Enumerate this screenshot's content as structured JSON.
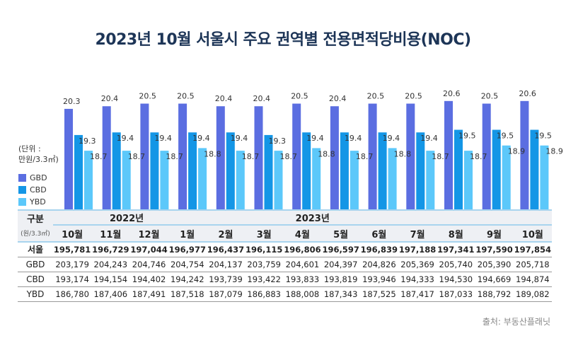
{
  "title": "2023년 10월 서울시 주요 권역별 전용면적당비용(NOC)",
  "unit_label_1": "(단위 :",
  "unit_label_2": "만원/3.3㎡)",
  "source": "출처: 부동산플래닛",
  "table": {
    "corner": "구분",
    "corner_unit": "(원/3.3㎡)",
    "years": [
      {
        "label": "2022년",
        "span": 3
      },
      {
        "label": "2023년",
        "span": 10
      }
    ],
    "months": [
      "10월",
      "11월",
      "12월",
      "1월",
      "2월",
      "3월",
      "4월",
      "5월",
      "6월",
      "7월",
      "8월",
      "9월",
      "10월"
    ],
    "rows": [
      {
        "label": "서울",
        "bold": true,
        "values": [
          "195,781",
          "196,729",
          "197,044",
          "196,977",
          "196,437",
          "196,115",
          "196,806",
          "196,597",
          "196,839",
          "197,188",
          "197,341",
          "197,590",
          "197,854"
        ]
      },
      {
        "label": "GBD",
        "values": [
          "203,179",
          "204,243",
          "204,746",
          "204,754",
          "204,137",
          "203,759",
          "204,601",
          "204,397",
          "204,826",
          "205,369",
          "205,740",
          "205,390",
          "205,718"
        ]
      },
      {
        "label": "CBD",
        "values": [
          "193,174",
          "194,154",
          "194,402",
          "194,242",
          "193,739",
          "193,422",
          "193,833",
          "193,819",
          "193,946",
          "194,333",
          "194,530",
          "194,669",
          "194,874"
        ]
      },
      {
        "label": "YBD",
        "values": [
          "186,780",
          "187,406",
          "187,491",
          "187,518",
          "187,079",
          "186,883",
          "188,008",
          "187,343",
          "187,525",
          "187,417",
          "187,033",
          "188,792",
          "189,082"
        ]
      }
    ]
  },
  "chart_data": {
    "type": "bar",
    "title": "2023년 10월 서울시 주요 권역별 전용면적당비용(NOC)",
    "ylabel": "(단위 : 만원/3.3㎡)",
    "categories": [
      "2022년 10월",
      "11월",
      "12월",
      "2023년 1월",
      "2월",
      "3월",
      "4월",
      "5월",
      "6월",
      "7월",
      "8월",
      "9월",
      "10월"
    ],
    "ylim": [
      16.5,
      21
    ],
    "grid": false,
    "legend": "left",
    "series": [
      {
        "name": "GBD",
        "color": "#5b6ee1",
        "values": [
          20.3,
          20.4,
          20.5,
          20.5,
          20.4,
          20.4,
          20.5,
          20.4,
          20.5,
          20.5,
          20.6,
          20.5,
          20.6
        ]
      },
      {
        "name": "CBD",
        "color": "#1496e6",
        "values": [
          19.3,
          19.4,
          19.4,
          19.4,
          19.4,
          19.3,
          19.4,
          19.4,
          19.4,
          19.4,
          19.5,
          19.5,
          19.5
        ]
      },
      {
        "name": "YBD",
        "color": "#5cc8fa",
        "values": [
          18.7,
          18.7,
          18.7,
          18.8,
          18.7,
          18.7,
          18.8,
          18.7,
          18.8,
          18.7,
          18.7,
          18.9,
          18.9
        ]
      }
    ]
  }
}
